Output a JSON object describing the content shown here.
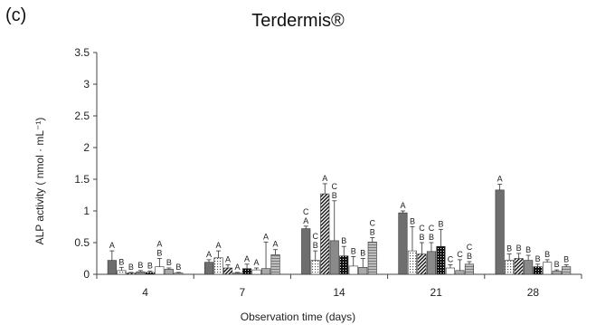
{
  "panel_label": "(c)",
  "chart_data": {
    "type": "bar",
    "title": "Terdermis®",
    "xlabel": "Observation time (days)",
    "ylabel": "ALP activity ( nmol · mL⁻¹)",
    "ylim": [
      0,
      3.5
    ],
    "yticks": [
      "0",
      "0.5",
      "1",
      "1.5",
      "2",
      "2.5",
      "3",
      "3.5"
    ],
    "grid": false,
    "categories": [
      "4",
      "7",
      "14",
      "21",
      "28"
    ],
    "series": [
      {
        "pattern": "solid-gray",
        "values": [
          0.22,
          0.19,
          0.72,
          0.97,
          1.33
        ],
        "errors": [
          0.15,
          0.04,
          0.04,
          0.03,
          0.09
        ],
        "letters": [
          "A",
          "A",
          "C A",
          "A",
          "A"
        ]
      },
      {
        "pattern": "dotted",
        "values": [
          0.06,
          0.26,
          0.22,
          0.37,
          0.22
        ],
        "errors": [
          0.05,
          0.11,
          0.15,
          0.38,
          0.1
        ],
        "letters": [
          "B",
          "A",
          "C B",
          "B",
          "B"
        ]
      },
      {
        "pattern": "diagonal",
        "values": [
          0.02,
          0.1,
          1.27,
          0.32,
          0.25
        ],
        "errors": [
          0.01,
          0.05,
          0.16,
          0.18,
          0.08
        ],
        "letters": [
          "B",
          "A",
          "A",
          "C B",
          "B"
        ]
      },
      {
        "pattern": "dark-gray",
        "values": [
          0.04,
          0.02,
          0.53,
          0.36,
          0.22
        ],
        "errors": [
          0.02,
          0.01,
          0.63,
          0.14,
          0.08
        ],
        "letters": [
          "B",
          "A",
          "C B",
          "C B",
          "B"
        ]
      },
      {
        "pattern": "black",
        "values": [
          0.03,
          0.09,
          0.29,
          0.44,
          0.12
        ],
        "errors": [
          0.02,
          0.07,
          0.15,
          0.27,
          0.04
        ],
        "letters": [
          "B",
          "A",
          "B",
          "B",
          "B"
        ]
      },
      {
        "pattern": "white",
        "values": [
          0.12,
          0.07,
          0.13,
          0.1,
          0.19
        ],
        "errors": [
          0.13,
          0.03,
          0.15,
          0.05,
          0.04
        ],
        "letters": [
          "A B",
          "A",
          "B",
          "C",
          "B"
        ]
      },
      {
        "pattern": "light-gray",
        "values": [
          0.08,
          0.09,
          0.11,
          0.06,
          0.05
        ],
        "errors": [
          0.02,
          0.42,
          0.14,
          0.17,
          0.02
        ],
        "letters": [
          "B",
          "A",
          "B",
          "C",
          "B"
        ]
      },
      {
        "pattern": "horizontal",
        "values": [
          0.02,
          0.31,
          0.51,
          0.16,
          0.12
        ],
        "errors": [
          0.01,
          0.08,
          0.07,
          0.04,
          0.03
        ],
        "letters": [
          "B",
          "A",
          "C B",
          "C B",
          "B"
        ]
      }
    ]
  }
}
